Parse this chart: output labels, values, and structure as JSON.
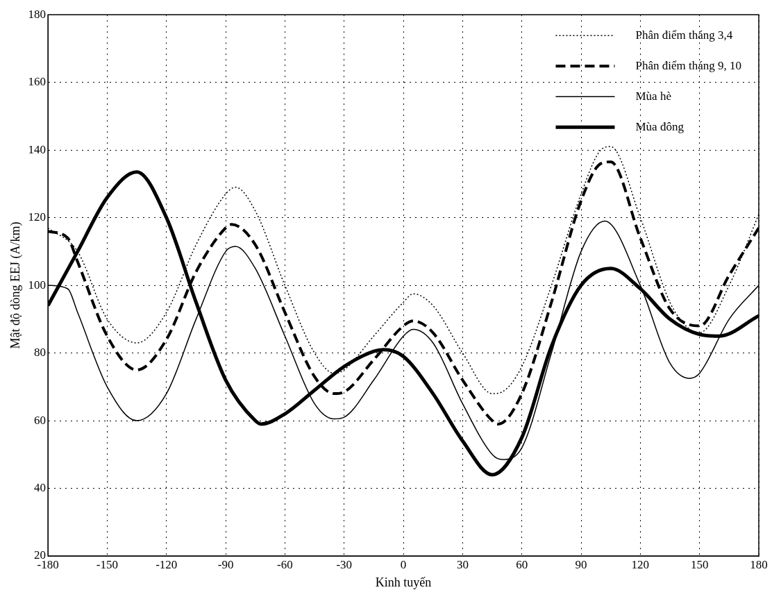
{
  "chart_data": {
    "type": "line",
    "xlabel": "Kinh tuyến",
    "ylabel": "Mật độ dòng EEJ (A/km)",
    "xlim": [
      -180,
      180
    ],
    "xticks": [
      -180,
      -150,
      -120,
      -90,
      -60,
      -30,
      0,
      30,
      60,
      90,
      120,
      150,
      180
    ],
    "ylim": [
      20,
      180
    ],
    "yticks": [
      20,
      40,
      60,
      80,
      100,
      120,
      140,
      160,
      180
    ],
    "grid": true,
    "legend": "top right",
    "marker": "none",
    "series": [
      {
        "name": "Phân điểm tháng 3,4",
        "color": "#000000",
        "line_style": "dotted",
        "x": [
          -180,
          -165,
          -150,
          -135,
          -120,
          -105,
          -90,
          -85,
          -75,
          -60,
          -45,
          -35,
          -30,
          -15,
          0,
          5,
          15,
          30,
          45,
          50,
          60,
          75,
          90,
          100,
          105,
          120,
          135,
          145,
          150,
          165,
          180
        ],
        "values": [
          117,
          110,
          90,
          83,
          92,
          112,
          127,
          129,
          122,
          100,
          80,
          74,
          75,
          85,
          95,
          97.5,
          94,
          80,
          68,
          68.5,
          76,
          100,
          127,
          140,
          141,
          120,
          95,
          87,
          86,
          100,
          121
        ]
      },
      {
        "name": "Phân điểm tháng 9, 10",
        "color": "#000000",
        "line_style": "dashed",
        "x": [
          -180,
          -170,
          -165,
          -150,
          -135,
          -120,
          -105,
          -90,
          -87,
          -75,
          -60,
          -45,
          -35,
          -30,
          -15,
          0,
          5,
          15,
          30,
          45,
          48,
          60,
          75,
          90,
          100,
          105,
          120,
          135,
          150,
          165,
          180
        ],
        "values": [
          116,
          114,
          107,
          85,
          75,
          84,
          104,
          117,
          118,
          112,
          92,
          73,
          68,
          68.5,
          78,
          88,
          89.5,
          86,
          72,
          60,
          59,
          68,
          95,
          125,
          136,
          136.5,
          114,
          93,
          88,
          103,
          117
        ]
      },
      {
        "name": "Mùa hè",
        "color": "#000000",
        "line_style": "solid",
        "x": [
          -180,
          -170,
          -165,
          -150,
          -135,
          -120,
          -105,
          -90,
          -85,
          -75,
          -60,
          -45,
          -35,
          -30,
          -15,
          0,
          5,
          15,
          30,
          45,
          50,
          60,
          75,
          90,
          102,
          120,
          135,
          145,
          150,
          165,
          180
        ],
        "values": [
          100,
          99,
          92,
          70,
          60,
          68,
          90,
          110,
          111.5,
          105,
          85,
          65,
          60.5,
          61,
          72,
          85,
          87,
          83,
          65,
          50,
          48.5,
          52,
          80,
          110,
          119,
          100,
          77,
          72.5,
          74,
          90,
          100
        ]
      },
      {
        "name": "Mùa đông",
        "color": "#000000",
        "line_style": "solid",
        "x": [
          -180,
          -165,
          -150,
          -135,
          -120,
          -105,
          -90,
          -75,
          -72,
          -60,
          -45,
          -30,
          -15,
          -10,
          0,
          15,
          30,
          45,
          60,
          75,
          90,
          105,
          120,
          135,
          150,
          160,
          180
        ],
        "values": [
          94,
          110,
          126,
          133.5,
          120,
          95,
          72,
          60,
          59,
          62,
          69,
          76,
          80.5,
          81,
          79,
          68,
          54,
          44,
          55,
          82,
          100,
          105,
          99,
          90,
          85.5,
          85,
          91
        ]
      }
    ]
  }
}
